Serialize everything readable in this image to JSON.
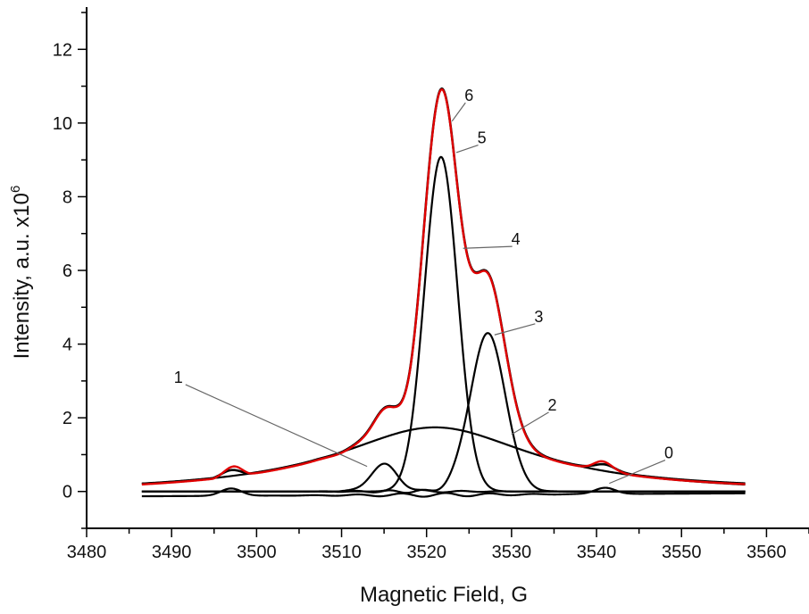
{
  "chart_data": {
    "type": "line",
    "xlabel": "Magnetic Field, G",
    "ylabel_main": "Intensity, a.u. x10",
    "ylabel_sup": "6",
    "xlim": [
      3480,
      3565
    ],
    "ylim": [
      -1,
      13
    ],
    "xticks": [
      3480,
      3490,
      3500,
      3510,
      3520,
      3530,
      3540,
      3550,
      3560
    ],
    "yticks": [
      0,
      2,
      4,
      6,
      8,
      10,
      12
    ],
    "x_minor_step": 5,
    "y_minor_step": 1,
    "grid": false,
    "colors": {
      "axis": "#000000",
      "components": "#000000",
      "experimental": "#e00000"
    },
    "x_range": [
      3486.5,
      3557.5
    ],
    "components": [
      {
        "label": "0",
        "type": "lorentzian-gaussian-comb",
        "peaks": [
          {
            "center": 3497.0,
            "amp": 0.2,
            "sigma": 1.2
          },
          {
            "center": 3541.0,
            "amp": 0.17,
            "sigma": 1.2
          }
        ],
        "baseline_left": -0.13,
        "baseline_right": -0.05
      },
      {
        "label": "1",
        "center": 3515.0,
        "amp": 0.73,
        "sigma": 1.6
      },
      {
        "label": "2",
        "center": 3521.0,
        "amp": 1.74,
        "gamma": 14.0,
        "baseline": -0.06
      },
      {
        "label": "3",
        "center": 3527.2,
        "amp": 4.28,
        "sigma": 2.1
      },
      {
        "label": "4",
        "center": 3521.7,
        "amp": 9.08,
        "sigma": 1.95
      }
    ],
    "series": [
      {
        "name": "5",
        "color": "#e00000"
      },
      {
        "name": "6",
        "color": "#000000"
      }
    ],
    "labels": [
      {
        "text": "0",
        "x": 3548.5,
        "y": 0.9,
        "line_to": [
          3541.5,
          0.22
        ]
      },
      {
        "text": "1",
        "x": 3490.8,
        "y": 2.95,
        "line_to": [
          3513.0,
          0.68
        ]
      },
      {
        "text": "2",
        "x": 3534.8,
        "y": 2.2,
        "line_to": [
          3530.0,
          1.55
        ]
      },
      {
        "text": "3",
        "x": 3533.2,
        "y": 4.6,
        "line_to": [
          3528.0,
          4.25
        ]
      },
      {
        "text": "4",
        "x": 3530.5,
        "y": 6.7,
        "line_to": [
          3524.3,
          6.6
        ]
      },
      {
        "text": "5",
        "x": 3526.5,
        "y": 9.45,
        "line_to": [
          3523.5,
          9.2
        ]
      },
      {
        "text": "6",
        "x": 3525.0,
        "y": 10.6,
        "line_to": [
          3523.0,
          10.05
        ]
      }
    ]
  }
}
